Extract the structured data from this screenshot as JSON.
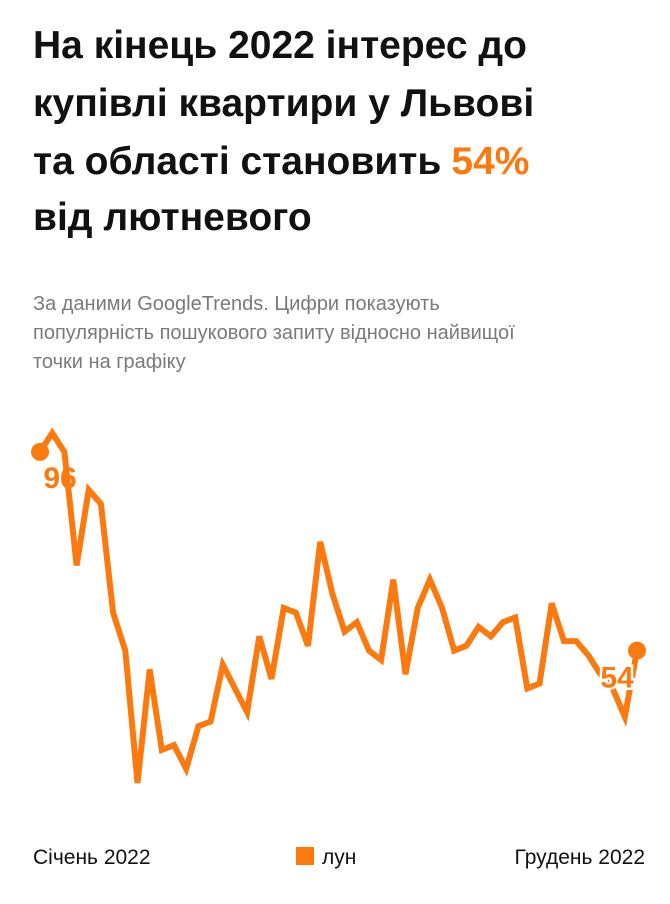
{
  "chart_data": {
    "type": "line",
    "title": [
      "На кінець 2022 інтерес до",
      "купівлі квартири у Львові",
      "та області становить",
      "від лютневого"
    ],
    "title_highlight": "54%",
    "subtitle": [
      "За даними GoogleTrends. Цифри показують",
      "популярність пошукового запиту відносно найвищої",
      "точки на графіку"
    ],
    "x_start_label": "Січень 2022",
    "x_end_label": "Грудень 2022",
    "brand": "лун",
    "color": "#fb7a10",
    "values": [
      96,
      100,
      96,
      72,
      88,
      85,
      62,
      54,
      26,
      50,
      33,
      34,
      29,
      38,
      39,
      51,
      46,
      41,
      57,
      48,
      63,
      62,
      55,
      77,
      66,
      58,
      60,
      54,
      52,
      69,
      49,
      63,
      69,
      63,
      54,
      55,
      59,
      57,
      60,
      61,
      46,
      47,
      64,
      56,
      56,
      53,
      49,
      46,
      40,
      54
    ]
  }
}
